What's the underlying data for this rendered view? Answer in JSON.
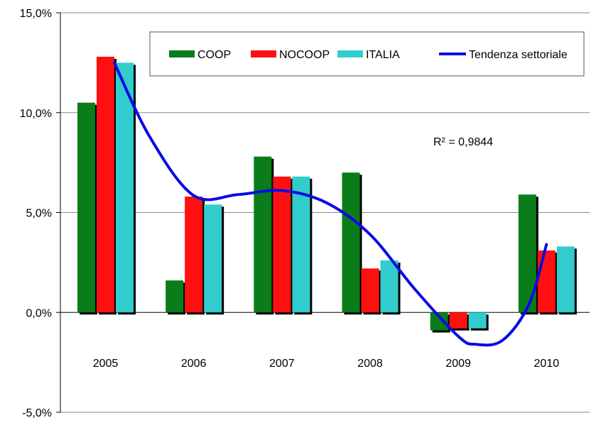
{
  "chart_data": {
    "type": "bar",
    "categories": [
      "2005",
      "2006",
      "2007",
      "2008",
      "2009",
      "2010"
    ],
    "ylim": [
      -5,
      15
    ],
    "yticks": [
      "-5,0%",
      "0,0%",
      "5,0%",
      "10,0%",
      "15,0%"
    ],
    "ytick_values": [
      -5,
      0,
      5,
      10,
      15
    ],
    "grid": true,
    "legend_position": "top-right",
    "series": [
      {
        "name": "COOP",
        "color": "#0a7d1a",
        "values": [
          10.5,
          1.6,
          7.8,
          7.0,
          -0.9,
          5.9
        ]
      },
      {
        "name": "NOCOOP",
        "color": "#ff1010",
        "values": [
          12.8,
          5.8,
          6.8,
          2.2,
          -0.8,
          3.1
        ]
      },
      {
        "name": "ITALIA",
        "color": "#33cccc",
        "values": [
          12.5,
          5.4,
          6.8,
          2.6,
          -0.8,
          3.3
        ]
      }
    ],
    "trend": {
      "name": "Tendenza settoriale",
      "color": "#0a0ae6",
      "points": [
        [
          0.1,
          12.5
        ],
        [
          0.5,
          8.8
        ],
        [
          1.0,
          5.85
        ],
        [
          1.5,
          5.9
        ],
        [
          2.0,
          6.1
        ],
        [
          2.5,
          5.5
        ],
        [
          3.0,
          3.9
        ],
        [
          3.5,
          1.2
        ],
        [
          4.0,
          -1.2
        ],
        [
          4.2,
          -1.6
        ],
        [
          4.5,
          -1.4
        ],
        [
          4.8,
          0.4
        ],
        [
          5.0,
          3.4
        ]
      ]
    },
    "annotation": "R² = 0,9844"
  }
}
